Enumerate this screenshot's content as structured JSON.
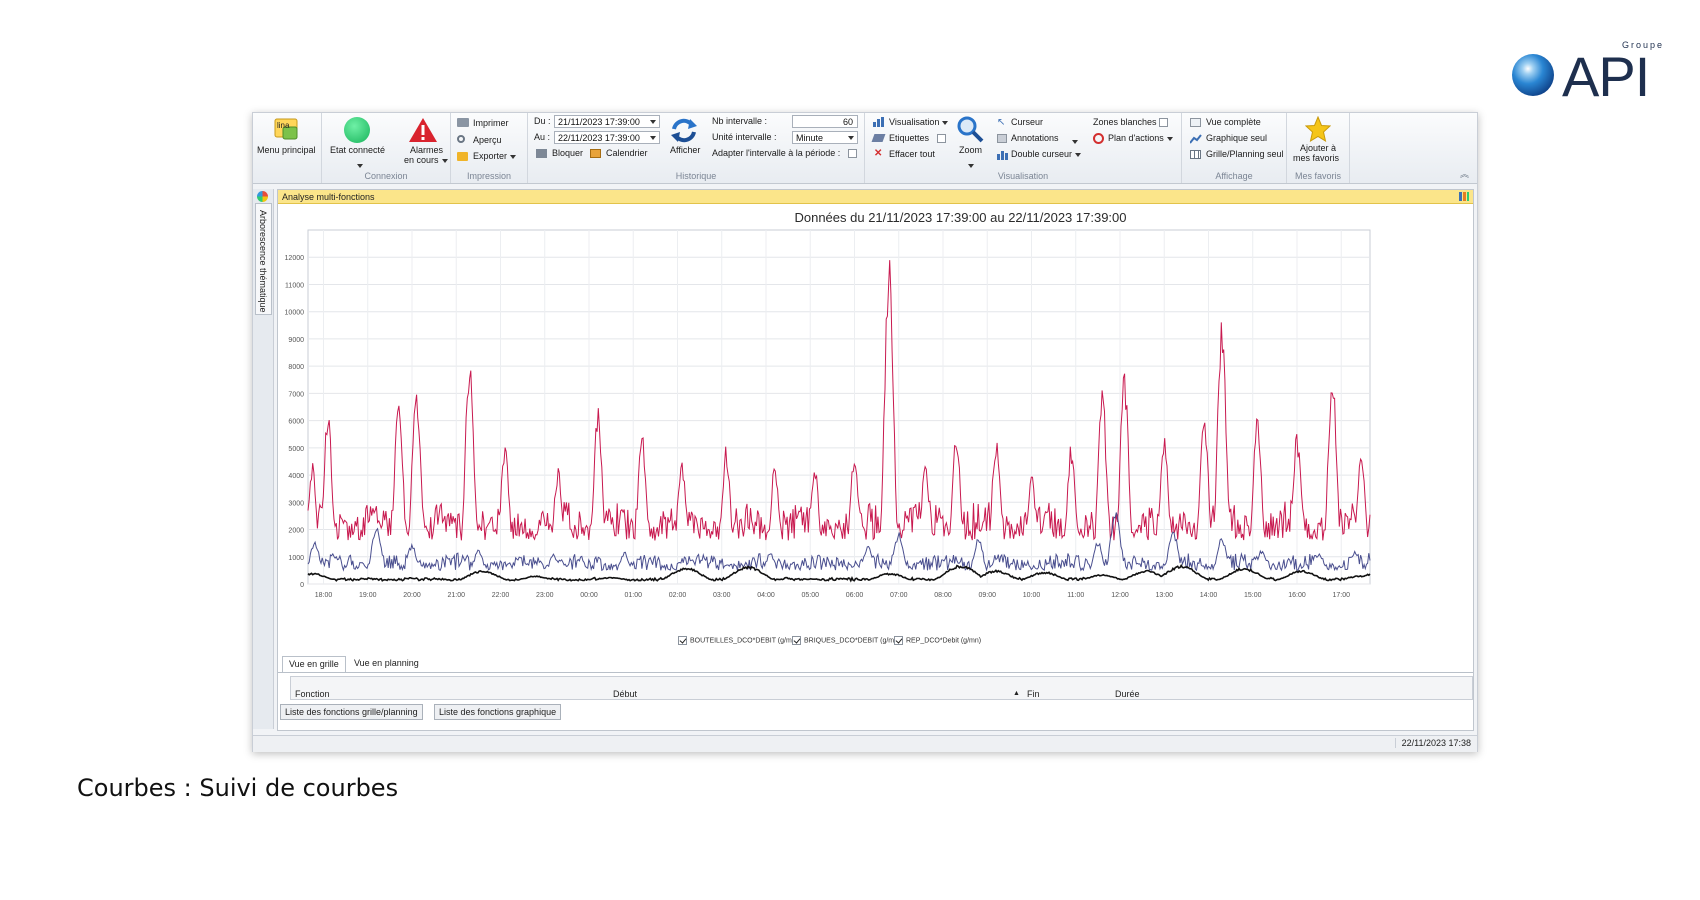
{
  "logo": {
    "groupe": "Groupe",
    "name": "API"
  },
  "ribbon": {
    "menu_principal": "Menu principal",
    "etat_connecte": "Etat connecté",
    "alarmes_line1": "Alarmes",
    "alarmes_line2": "en cours",
    "connexion_label": "Connexion",
    "imprimer": "Imprimer",
    "apercu": "Aperçu",
    "exporter": "Exporter",
    "impression_label": "Impression",
    "du_label": "Du :",
    "du_value": "21/11/2023 17:39:00",
    "au_label": "Au :",
    "au_value": "22/11/2023 17:39:00",
    "bloquer": "Bloquer",
    "calendrier": "Calendrier",
    "afficher": "Afficher",
    "nb_intervalle_label": "Nb intervalle :",
    "nb_intervalle_value": "60",
    "unite_intervalle_label": "Unité intervalle :",
    "unite_intervalle_value": "Minute",
    "adapter_label": "Adapter l'intervalle à la période :",
    "historique_label": "Historique",
    "visualisation": "Visualisation",
    "etiquettes": "Etiquettes",
    "effacer_tout": "Effacer tout",
    "zoom": "Zoom",
    "curseur": "Curseur",
    "annotations": "Annotations",
    "double_curseur": "Double curseur",
    "zones_blanches": "Zones blanches",
    "plan_actions": "Plan d'actions",
    "visualisation_label": "Visualisation",
    "vue_complete": "Vue complète",
    "graphique_seul": "Graphique seul",
    "grille_planning_seul": "Grille/Planning seul",
    "affichage_label": "Affichage",
    "ajouter_line1": "Ajouter à",
    "ajouter_line2": "mes favoris",
    "mes_favoris_label": "Mes favoris"
  },
  "sidebar": {
    "tab": "Arborescence thématique"
  },
  "panel": {
    "title": "Analyse multi-fonctions"
  },
  "chart_data": {
    "type": "line",
    "title": "Données du 21/11/2023 17:39:00 au 22/11/2023 17:39:00",
    "x_ticks": [
      "18:00",
      "19:00",
      "20:00",
      "21:00",
      "22:00",
      "23:00",
      "00:00",
      "01:00",
      "02:00",
      "03:00",
      "04:00",
      "05:00",
      "06:00",
      "07:00",
      "08:00",
      "09:00",
      "10:00",
      "11:00",
      "12:00",
      "13:00",
      "14:00",
      "15:00",
      "16:00",
      "17:00"
    ],
    "y_ticks": [
      0,
      1000,
      2000,
      3000,
      4000,
      5000,
      6000,
      7000,
      8000,
      9000,
      10000,
      11000,
      12000
    ],
    "ylim": [
      0,
      13000
    ],
    "grid": true,
    "legend_position": "bottom",
    "colors": {
      "series1": "#4a4f8f",
      "series2": "#c8194f",
      "series3": "#111111"
    },
    "series": [
      {
        "name": "BOUTEILLES_DCO*DEBIT (g/mn)",
        "peaks": [
          [
            17.8,
            1600
          ],
          [
            19.2,
            2100
          ],
          [
            20.0,
            1500
          ],
          [
            21.5,
            1300
          ],
          [
            23.2,
            1100
          ],
          [
            0.8,
            1200
          ],
          [
            2.3,
            1000
          ],
          [
            4.1,
            1200
          ],
          [
            6.3,
            1400
          ],
          [
            7.0,
            1900
          ],
          [
            8.8,
            1700
          ],
          [
            11.5,
            1600
          ],
          [
            11.9,
            2700
          ],
          [
            13.2,
            2000
          ],
          [
            14.3,
            1700
          ],
          [
            15.2,
            1300
          ],
          [
            16.5,
            1200
          ],
          [
            17.3,
            1200
          ]
        ]
      },
      {
        "name": "BRIQUES_DCO*DEBIT (g/mn)",
        "peaks": [
          [
            17.75,
            4500
          ],
          [
            18.1,
            6400
          ],
          [
            19.7,
            6900
          ],
          [
            20.1,
            7500
          ],
          [
            21.3,
            8300
          ],
          [
            22.1,
            5300
          ],
          [
            23.3,
            4300
          ],
          [
            0.2,
            6500
          ],
          [
            1.2,
            5700
          ],
          [
            2.1,
            4700
          ],
          [
            3.1,
            5100
          ],
          [
            4.2,
            4600
          ],
          [
            5.1,
            4400
          ],
          [
            6.0,
            5000
          ],
          [
            6.78,
            12200
          ],
          [
            7.6,
            4500
          ],
          [
            8.3,
            5700
          ],
          [
            9.2,
            5500
          ],
          [
            10.0,
            4100
          ],
          [
            10.9,
            5200
          ],
          [
            11.6,
            7200
          ],
          [
            12.1,
            7800
          ],
          [
            13.0,
            5600
          ],
          [
            13.9,
            6500
          ],
          [
            14.3,
            9900
          ],
          [
            15.1,
            6300
          ],
          [
            16.0,
            5600
          ],
          [
            16.8,
            7800
          ],
          [
            17.45,
            5100
          ]
        ]
      },
      {
        "name": "REP_DCO*Debit (g/mn)",
        "peaks": [
          [
            17.75,
            400
          ],
          [
            19.0,
            200
          ],
          [
            21.6,
            500
          ],
          [
            22.8,
            300
          ],
          [
            0.5,
            250
          ],
          [
            2.2,
            600
          ],
          [
            3.6,
            650
          ],
          [
            5.0,
            200
          ],
          [
            6.8,
            400
          ],
          [
            8.4,
            700
          ],
          [
            9.2,
            500
          ],
          [
            10.3,
            450
          ],
          [
            11.6,
            350
          ],
          [
            12.6,
            500
          ],
          [
            13.4,
            700
          ],
          [
            14.8,
            600
          ],
          [
            16.1,
            500
          ],
          [
            17.4,
            300
          ]
        ]
      }
    ]
  },
  "tabs": {
    "grille": "Vue en grille",
    "planning": "Vue en planning"
  },
  "grid": {
    "fonction": "Fonction",
    "debut": "Début",
    "fin": "Fin",
    "duree": "Durée"
  },
  "buttons": {
    "liste_grille": "Liste des fonctions grille/planning",
    "liste_graphique": "Liste des fonctions graphique"
  },
  "status": {
    "datetime": "22/11/2023 17:38"
  },
  "caption": "Courbes : Suivi de courbes"
}
